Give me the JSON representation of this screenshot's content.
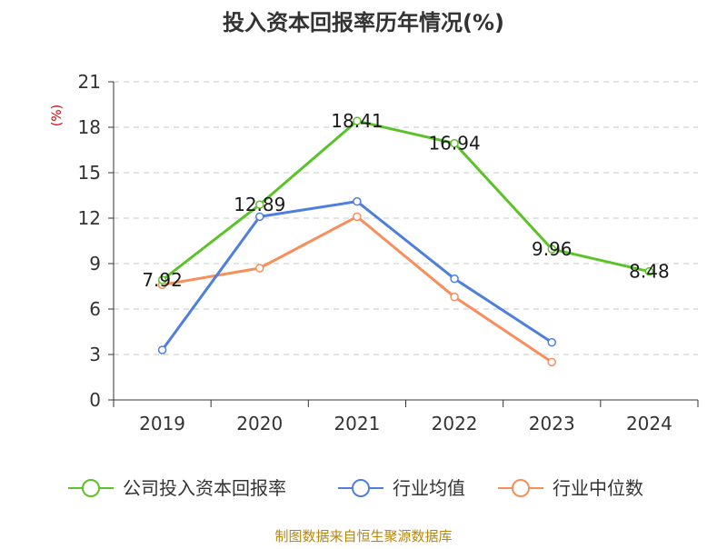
{
  "chart_data": {
    "type": "line",
    "title": "投入资本回报率历年情况(%)",
    "ylabel": "(%)",
    "xlabel": "",
    "categories": [
      "2019",
      "2020",
      "2021",
      "2022",
      "2023",
      "2024"
    ],
    "ylim": [
      0,
      21
    ],
    "yticks": [
      0,
      3,
      6,
      9,
      12,
      15,
      18,
      21
    ],
    "grid": true,
    "legend_position": "bottom",
    "series": [
      {
        "name": "公司投入资本回报率",
        "color": "#5cc22a",
        "values": [
          7.92,
          12.89,
          18.41,
          16.94,
          9.96,
          8.48
        ],
        "labels": [
          "7.92",
          "12.89",
          "18.41",
          "16.94",
          "9.96",
          "8.48"
        ]
      },
      {
        "name": "行业均值",
        "color": "#4f7fdc",
        "values": [
          3.3,
          12.1,
          13.1,
          8.0,
          3.8,
          null
        ]
      },
      {
        "name": "行业中位数",
        "color": "#f78e5b",
        "values": [
          7.6,
          8.7,
          12.1,
          6.8,
          2.5,
          null
        ]
      }
    ],
    "source": "制图数据来自恒生聚源数据库"
  }
}
